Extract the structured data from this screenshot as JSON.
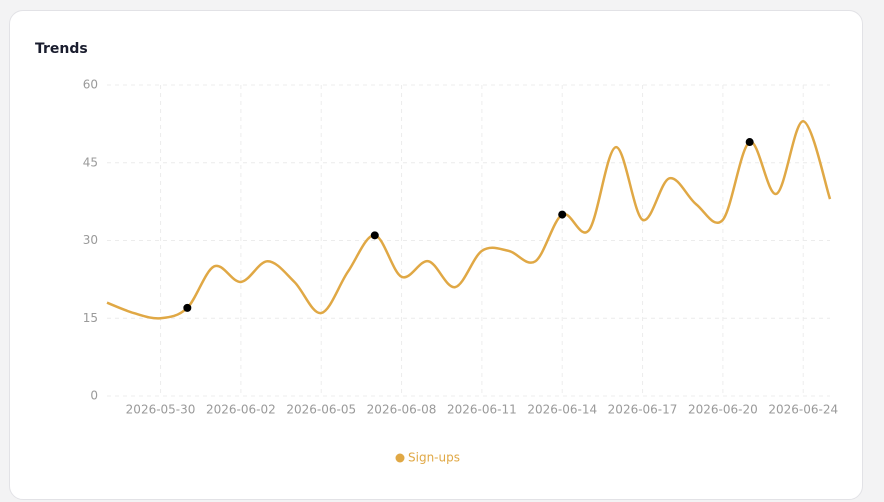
{
  "chart_data": {
    "type": "line",
    "title": "Trends",
    "categories": [
      null,
      null,
      "2026-05-30",
      null,
      null,
      "2026-06-02",
      null,
      null,
      "2026-06-05",
      null,
      null,
      "2026-06-08",
      null,
      null,
      "2026-06-11",
      null,
      null,
      "2026-06-14",
      null,
      null,
      "2026-06-17",
      null,
      null,
      "2026-06-20",
      null,
      null,
      "2026-06-24",
      null
    ],
    "series": [
      {
        "name": "Sign-ups",
        "color": "#e0a845",
        "values": [
          18,
          16,
          15,
          17,
          25,
          22,
          26,
          22,
          16,
          24,
          31,
          23,
          26,
          21,
          28,
          28,
          26,
          35,
          32,
          48,
          34,
          42,
          37,
          34,
          49,
          39,
          53,
          38
        ]
      }
    ],
    "highlight_points": [
      3,
      10,
      17,
      24
    ],
    "marker_color": "#000000",
    "ylim": [
      0,
      60
    ],
    "yticks": [
      0,
      15,
      30,
      45,
      60
    ],
    "grid": true,
    "legend": "bottom"
  }
}
